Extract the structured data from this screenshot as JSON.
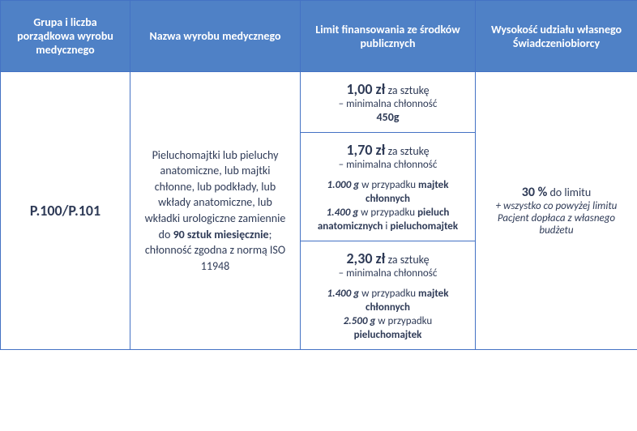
{
  "headers": {
    "c0": "Grupa i liczba porządkowa wyrobu medycznego",
    "c1": "Nazwa wyrobu medycznego",
    "c2": "Limit finansowania ze środków publicznych",
    "c3": "Wysokość udziału własnego Świadczeniobiorcy"
  },
  "code": "P.100/P.101",
  "desc": {
    "p1": "Pieluchomajtki lub pieluchy anatomiczne, lub majtki chłonne, lub podkłady, lub wkłady anatomiczne, lub wkładki urologiczne zamiennie do ",
    "qty": "90 sztuk miesięcznie",
    "p2": "; chłonność zgodna z normą ISO 11948"
  },
  "limits": [
    {
      "price": "1,00 zł",
      "unit": " za sztukę",
      "min_label": "– minimalna chłonność",
      "single_weight": "450g"
    },
    {
      "price": "1,70 zł",
      "unit": " za sztukę",
      "min_label": "– minimalna chłonność",
      "rows": [
        {
          "w": "1.000 g",
          "t": " w przypadku ",
          "p": "majtek chłonnych"
        },
        {
          "w": "1.400 g",
          "t": " w przypadku ",
          "p1": "pieluch anatomicznych",
          "and": " i ",
          "p2": "pieluchomajtek"
        }
      ]
    },
    {
      "price": "2,30 zł",
      "unit": " za sztukę",
      "min_label": "– minimalna chłonność",
      "rows": [
        {
          "w": "1.400 g",
          "t": " w przypadku ",
          "p": "majtek chłonnych"
        },
        {
          "w": "2.500 g",
          "t": " w przypadku ",
          "p": "pieluchomajtek"
        }
      ]
    }
  ],
  "share": {
    "pct": "30 %",
    "pct_tail": " do limitu",
    "note": "+ wszystko co powyżej limitu Pacjent dopłaca z własnego budżetu"
  }
}
